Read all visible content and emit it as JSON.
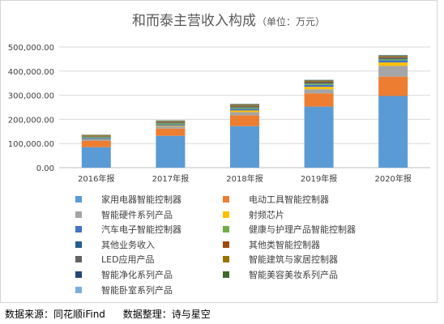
{
  "chart_data": {
    "type": "bar",
    "stacked": true,
    "title": "和而泰主营收入构成",
    "subtitle": "（单位：万元）",
    "categories": [
      "2016年报",
      "2017年报",
      "2018年报",
      "2019年报",
      "2020年报"
    ],
    "yticks": [
      "0.00",
      "100,000.00",
      "200,000.00",
      "300,000.00",
      "400,000.00",
      "500,000.00"
    ],
    "ylim": [
      0,
      500000
    ],
    "grid": true,
    "legend_position": "bottom",
    "series": [
      {
        "name": "家用电器智能控制器",
        "color": "#5b9bd5",
        "values": [
          85000,
          132000,
          172000,
          253000,
          297000
        ]
      },
      {
        "name": "电动工具智能控制器",
        "color": "#ed7d31",
        "values": [
          27000,
          30000,
          45000,
          55000,
          80000
        ]
      },
      {
        "name": "智能硬件系列产品",
        "color": "#a5a5a5",
        "values": [
          7000,
          9000,
          13000,
          17000,
          45000
        ]
      },
      {
        "name": "射频芯片",
        "color": "#ffc000",
        "values": [
          0,
          3000,
          7000,
          10000,
          14000
        ]
      },
      {
        "name": "汽车电子智能控制器",
        "color": "#4472c4",
        "values": [
          4000,
          5000,
          7000,
          8000,
          9000
        ]
      },
      {
        "name": "健康与护理产品智能控制器",
        "color": "#70ad47",
        "values": [
          4000,
          5000,
          5000,
          5000,
          5000
        ]
      },
      {
        "name": "其他业务收入",
        "color": "#255e91",
        "values": [
          1500,
          2000,
          2500,
          3000,
          3000
        ]
      },
      {
        "name": "其他类智能控制器",
        "color": "#9e480e",
        "values": [
          2000,
          2500,
          3000,
          3000,
          3000
        ]
      },
      {
        "name": "LED应用产品",
        "color": "#636363",
        "values": [
          1500,
          2000,
          3000,
          3000,
          3000
        ]
      },
      {
        "name": "智能建筑与家居控制器",
        "color": "#997300",
        "values": [
          3000,
          3000,
          3500,
          3500,
          3500
        ]
      },
      {
        "name": "智能净化系列产品",
        "color": "#264478",
        "values": [
          0,
          1000,
          1500,
          1500,
          1500
        ]
      },
      {
        "name": "智能美容美妆系列产品",
        "color": "#43682b",
        "values": [
          1000,
          1000,
          1500,
          1500,
          2000
        ]
      },
      {
        "name": "智能卧室系列产品",
        "color": "#7cafdd",
        "values": [
          1000,
          1000,
          1000,
          1000,
          1000
        ]
      }
    ]
  },
  "footer": {
    "source": "数据来源：同花顺iFind",
    "compiler": "数据整理：诗与星空"
  }
}
